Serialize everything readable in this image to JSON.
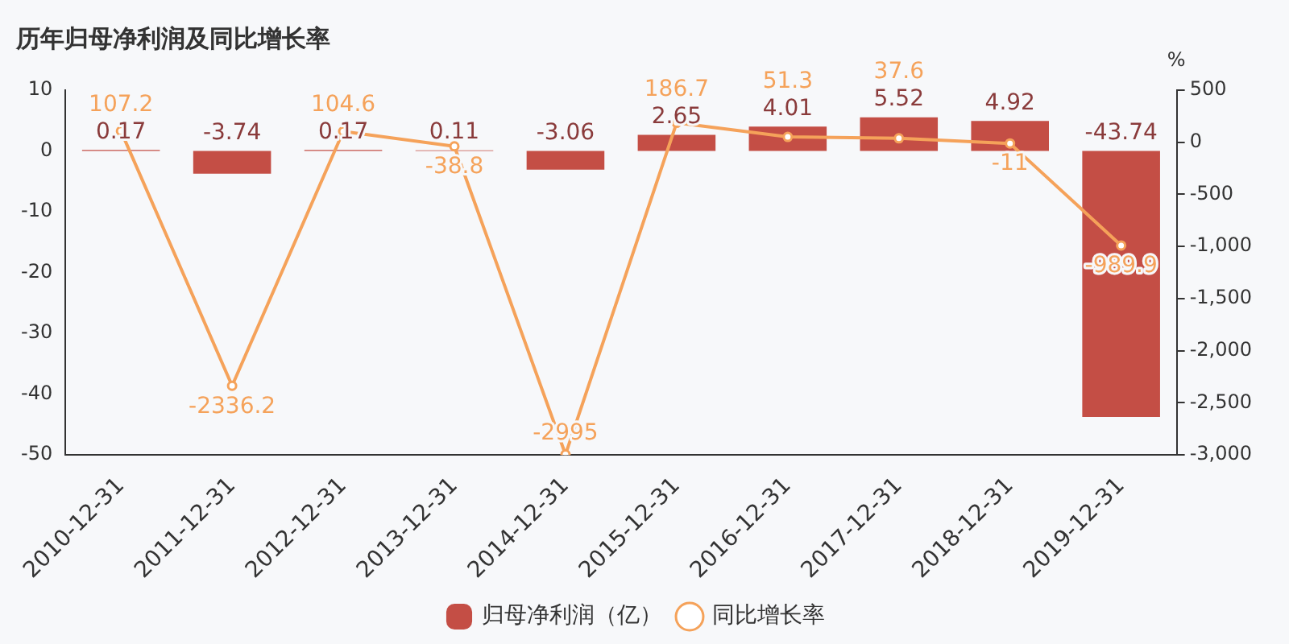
{
  "chart_data": {
    "type": "bar",
    "title": "历年归母净利润及同比增长率",
    "y2label": "%",
    "categories": [
      "2010-12-31",
      "2011-12-31",
      "2012-12-31",
      "2013-12-31",
      "2014-12-31",
      "2015-12-31",
      "2016-12-31",
      "2017-12-31",
      "2018-12-31",
      "2019-12-31"
    ],
    "series": [
      {
        "name": "归母净利润（亿）",
        "color": "#c44e45",
        "values": [
          0.17,
          -3.74,
          0.17,
          0.11,
          -3.06,
          2.65,
          4.01,
          5.52,
          4.92,
          -43.74
        ]
      },
      {
        "name": "同比增长率",
        "type": "line",
        "axis": "y2",
        "color": "#f5a25a",
        "values": [
          107.2,
          -2336.2,
          104.6,
          -38.8,
          -2995,
          186.7,
          51.3,
          37.6,
          -11,
          -989.9
        ]
      }
    ],
    "ylim": [
      -50,
      10
    ],
    "yticks": [
      -50,
      -40,
      -30,
      -20,
      -10,
      0,
      10
    ],
    "y2lim": [
      -3000,
      500
    ],
    "y2ticks": [
      {
        "value": -3000,
        "label": "-3,000"
      },
      {
        "value": -2500,
        "label": "-2,500"
      },
      {
        "value": -2000,
        "label": "-2,000"
      },
      {
        "value": -1500,
        "label": "-1,500"
      },
      {
        "value": -1000,
        "label": "-1,000"
      },
      {
        "value": -500,
        "label": "-500"
      },
      0,
      500
    ],
    "grid": false,
    "legend": "bottom",
    "marker": "circle",
    "line_style": "solid",
    "data_labels": true
  }
}
